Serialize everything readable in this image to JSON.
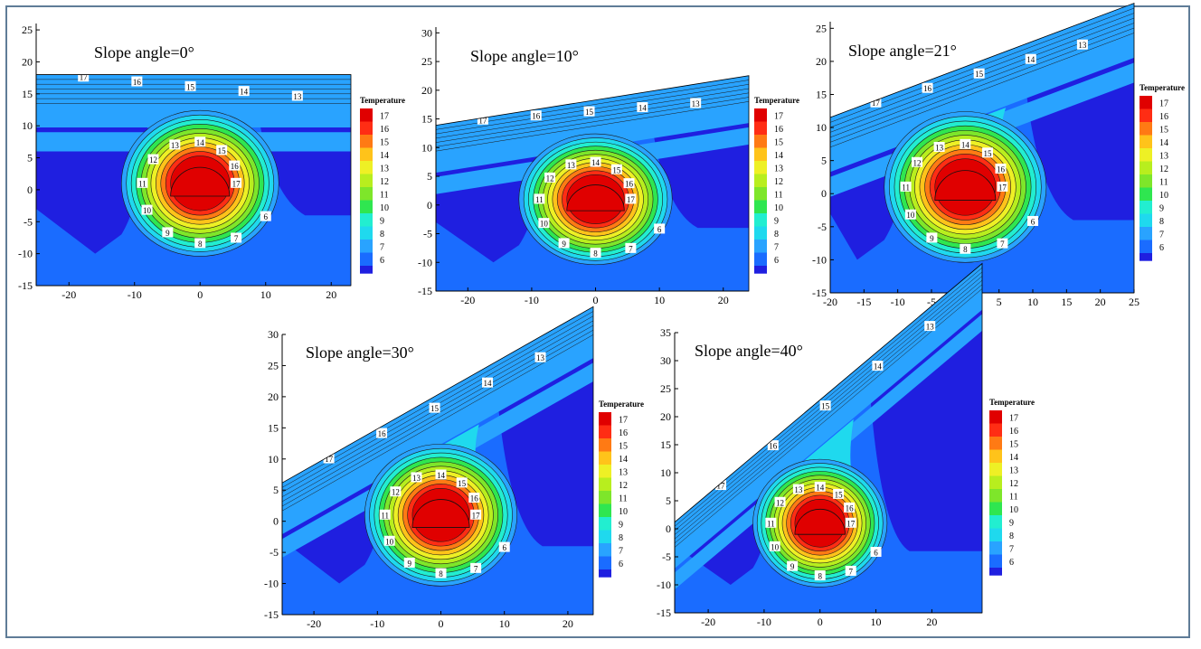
{
  "figure": {
    "frame_color": "#5f7c97"
  },
  "legend_title": "Temperature",
  "contour_levels": [
    6,
    7,
    8,
    9,
    10,
    11,
    12,
    13,
    14,
    15,
    16,
    17
  ],
  "colormap": [
    "#1f1fe0",
    "#1a6cff",
    "#29a3ff",
    "#1fd9ee",
    "#22eed0",
    "#2fe650",
    "#7ee62a",
    "#b8ee1e",
    "#eef025",
    "#ffc31a",
    "#ff7a14",
    "#ff2d14",
    "#e00000"
  ],
  "chart_data": [
    {
      "type": "contour",
      "title": "Slope angle=0°",
      "slope_angle_deg": 0,
      "xlim": [
        -25,
        23
      ],
      "ylim": [
        -15,
        26
      ],
      "xticks": [
        -20,
        -10,
        0,
        10,
        20
      ],
      "yticks": [
        -15,
        -10,
        -5,
        0,
        5,
        10,
        15,
        20,
        25
      ],
      "surface_y_at_x0": 18,
      "pipe_center": [
        0,
        1
      ],
      "pipe_radius": 4.5,
      "contour_labels": [
        17,
        16,
        15,
        14,
        13,
        12,
        11,
        10,
        9,
        8,
        7,
        6
      ]
    },
    {
      "type": "contour",
      "title": "Slope angle=10°",
      "slope_angle_deg": 10,
      "xlim": [
        -25,
        24
      ],
      "ylim": [
        -15,
        31
      ],
      "xticks": [
        -20,
        -10,
        0,
        10,
        20
      ],
      "yticks": [
        -15,
        -10,
        -5,
        0,
        5,
        10,
        15,
        20,
        25,
        30
      ],
      "surface_y_at_x0": 18.3,
      "pipe_center": [
        0,
        1
      ],
      "pipe_radius": 4.5,
      "contour_labels": [
        17,
        16,
        15,
        14,
        13,
        12,
        11,
        10,
        9,
        8,
        7,
        6
      ]
    },
    {
      "type": "contour",
      "title": "Slope angle=21°",
      "slope_angle_deg": 21,
      "xlim": [
        -20,
        25
      ],
      "ylim": [
        -15,
        26
      ],
      "xticks": [
        -20,
        -15,
        -10,
        -5,
        0,
        5,
        10,
        15,
        20,
        25
      ],
      "yticks": [
        -15,
        -10,
        -5,
        0,
        5,
        10,
        15,
        20,
        25
      ],
      "surface_y_at_x0": 19.2,
      "pipe_center": [
        0,
        1
      ],
      "pipe_radius": 4.5,
      "contour_labels": [
        17,
        16,
        15,
        14,
        13,
        12,
        11,
        10,
        9,
        8,
        7,
        6
      ]
    },
    {
      "type": "contour",
      "title": "Slope angle=30°",
      "slope_angle_deg": 30,
      "xlim": [
        -25,
        24
      ],
      "ylim": [
        -15,
        30
      ],
      "xticks": [
        -20,
        -10,
        0,
        10,
        20
      ],
      "yticks": [
        -15,
        -10,
        -5,
        0,
        5,
        10,
        15,
        20,
        25,
        30
      ],
      "surface_y_at_x0": 20.6,
      "pipe_center": [
        0,
        1
      ],
      "pipe_radius": 4.5,
      "contour_labels": [
        17,
        16,
        15,
        14,
        13,
        12,
        11,
        10,
        9,
        8,
        7,
        6
      ]
    },
    {
      "type": "contour",
      "title": "Slope angle=40°",
      "slope_angle_deg": 40,
      "xlim": [
        -26,
        29
      ],
      "ylim": [
        -15,
        35
      ],
      "xticks": [
        -20,
        -10,
        0,
        10,
        20
      ],
      "yticks": [
        -15,
        -10,
        -5,
        0,
        5,
        10,
        15,
        20,
        25,
        30,
        35
      ],
      "surface_y_at_x0": 23,
      "pipe_center": [
        0,
        1
      ],
      "pipe_radius": 4.5,
      "contour_labels": [
        17,
        16,
        15,
        14,
        13,
        12,
        11,
        10,
        9,
        8,
        7,
        6
      ]
    }
  ]
}
